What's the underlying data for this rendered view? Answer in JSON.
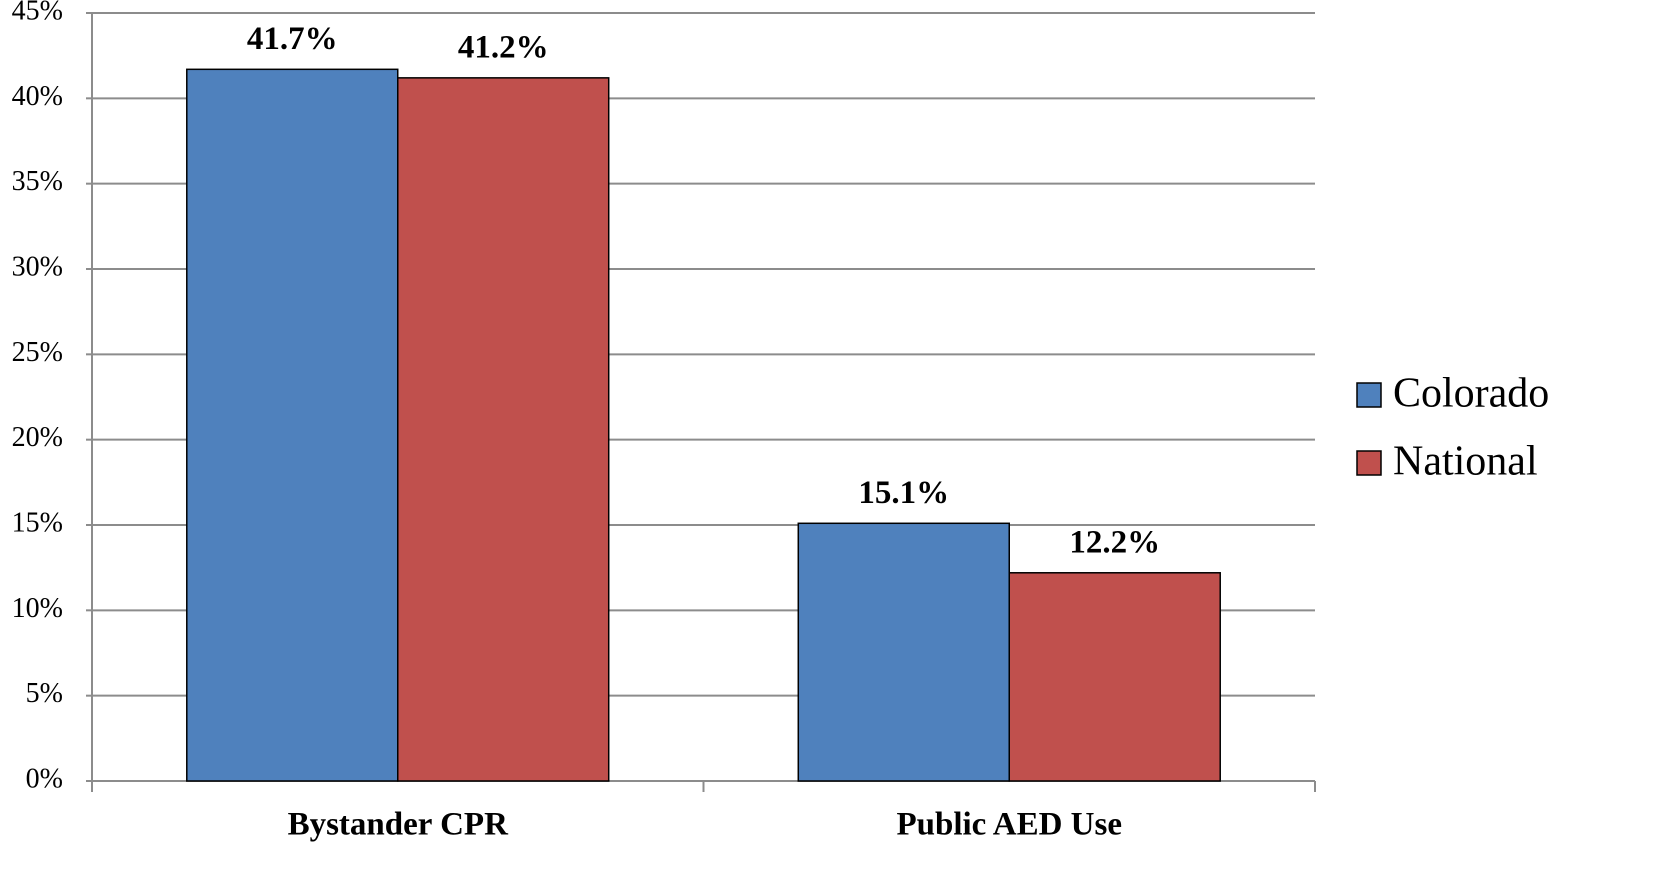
{
  "chart_data": {
    "type": "bar",
    "categories": [
      "Bystander CPR",
      "Public AED Use"
    ],
    "series": [
      {
        "name": "Colorado",
        "color": "#4f81bd",
        "values": [
          41.7,
          15.1
        ],
        "value_labels": [
          "41.7%",
          "15.1%"
        ]
      },
      {
        "name": "National",
        "color": "#c0504d",
        "values": [
          41.2,
          12.2
        ],
        "value_labels": [
          "41.2%",
          "12.2%"
        ]
      }
    ],
    "ylim": [
      0,
      45
    ],
    "yticks": [
      {
        "value": 0,
        "label": "0%"
      },
      {
        "value": 5,
        "label": "5%"
      },
      {
        "value": 10,
        "label": "10%"
      },
      {
        "value": 15,
        "label": "15%"
      },
      {
        "value": 20,
        "label": "20%"
      },
      {
        "value": 25,
        "label": "25%"
      },
      {
        "value": 30,
        "label": "30%"
      },
      {
        "value": 35,
        "label": "35%"
      },
      {
        "value": 40,
        "label": "40%"
      },
      {
        "value": 45,
        "label": "45%"
      }
    ],
    "grid": true,
    "legend": "right"
  }
}
